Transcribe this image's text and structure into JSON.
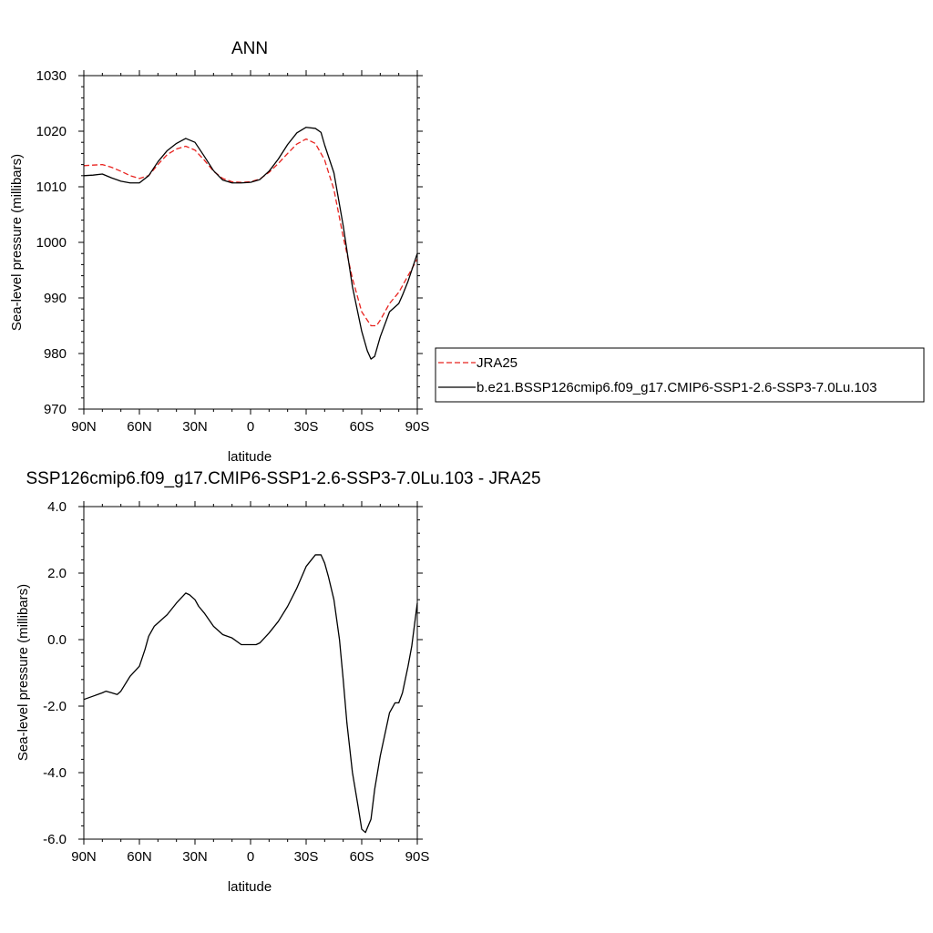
{
  "chart_data": [
    {
      "type": "line",
      "title": "ANN",
      "xlabel": "latitude",
      "ylabel": "Sea-level pressure (millibars)",
      "xlim": [
        -90,
        90
      ],
      "ylim": [
        970,
        1030
      ],
      "x_ticks": [
        -90,
        -60,
        -30,
        0,
        30,
        60,
        90
      ],
      "x_tick_labels": [
        "90N",
        "60N",
        "30N",
        "0",
        "30S",
        "60S",
        "90S"
      ],
      "y_ticks": [
        970,
        980,
        990,
        1000,
        1010,
        1020,
        1030
      ],
      "y_tick_labels": [
        "970",
        "980",
        "990",
        "1000",
        "1010",
        "1020",
        "1030"
      ],
      "grid": false,
      "legend_placement": "right",
      "series": [
        {
          "name": "JRA25",
          "color": "#e8231f",
          "dash": "dashed",
          "x": [
            -90,
            -85,
            -80,
            -75,
            -70,
            -65,
            -60,
            -55,
            -50,
            -45,
            -40,
            -35,
            -30,
            -25,
            -20,
            -15,
            -10,
            -5,
            0,
            5,
            10,
            15,
            20,
            25,
            30,
            35,
            40,
            45,
            50,
            55,
            60,
            65,
            68,
            70,
            75,
            80,
            85,
            90
          ],
          "y": [
            1013.8,
            1013.9,
            1014.0,
            1013.5,
            1012.8,
            1012.0,
            1011.5,
            1012.0,
            1014.0,
            1015.8,
            1016.8,
            1017.3,
            1016.6,
            1014.8,
            1012.8,
            1011.5,
            1010.9,
            1010.8,
            1010.9,
            1011.4,
            1012.6,
            1014.2,
            1016.0,
            1017.7,
            1018.6,
            1017.8,
            1014.8,
            1009.5,
            1001.0,
            993.5,
            987.5,
            985.0,
            985.0,
            986.0,
            989.0,
            991.0,
            994.0,
            997.0
          ]
        },
        {
          "name": "b.e21.BSSP126cmip6.f09_g17.CMIP6-SSP1-2.6-SSP3-7.0Lu.103",
          "color": "#000000",
          "dash": "solid",
          "x": [
            -90,
            -85,
            -80,
            -75,
            -70,
            -65,
            -60,
            -55,
            -50,
            -45,
            -40,
            -35,
            -30,
            -25,
            -20,
            -15,
            -10,
            -5,
            0,
            5,
            10,
            15,
            20,
            25,
            30,
            35,
            38,
            40,
            45,
            50,
            55,
            60,
            63,
            65,
            67,
            70,
            75,
            80,
            82,
            85,
            88,
            90
          ],
          "y": [
            1012.0,
            1012.1,
            1012.3,
            1011.6,
            1011.0,
            1010.7,
            1010.7,
            1012.0,
            1014.5,
            1016.5,
            1017.8,
            1018.7,
            1018.0,
            1015.5,
            1012.9,
            1011.2,
            1010.7,
            1010.7,
            1010.8,
            1011.3,
            1012.8,
            1015.0,
            1017.6,
            1019.7,
            1020.7,
            1020.5,
            1019.8,
            1017.5,
            1012.5,
            1003.0,
            992.0,
            984.0,
            980.5,
            979.0,
            979.5,
            983.0,
            987.5,
            989.0,
            990.5,
            993.0,
            996.0,
            998.0
          ]
        }
      ]
    },
    {
      "type": "line",
      "title": "SSP126cmip6.f09_g17.CMIP6-SSP1-2.6-SSP3-7.0Lu.103 - JRA25",
      "xlabel": "latitude",
      "ylabel": "Sea-level pressure (millibars)",
      "xlim": [
        -90,
        90
      ],
      "ylim": [
        -6,
        4
      ],
      "x_ticks": [
        -90,
        -60,
        -30,
        0,
        30,
        60,
        90
      ],
      "x_tick_labels": [
        "90N",
        "60N",
        "30N",
        "0",
        "30S",
        "60S",
        "90S"
      ],
      "y_ticks": [
        -6,
        -4,
        -2,
        0,
        2,
        4
      ],
      "y_tick_labels": [
        "-6.0",
        "-4.0",
        "-2.0",
        "0.0",
        "2.0",
        "4.0"
      ],
      "grid": false,
      "series": [
        {
          "color": "#000000",
          "dash": "solid",
          "x": [
            -90,
            -85,
            -80,
            -78,
            -75,
            -72,
            -70,
            -65,
            -60,
            -57,
            -55,
            -52,
            -50,
            -45,
            -40,
            -35,
            -33,
            -30,
            -28,
            -25,
            -20,
            -15,
            -10,
            -5,
            0,
            3,
            5,
            10,
            15,
            20,
            25,
            30,
            35,
            38,
            40,
            42,
            45,
            48,
            50,
            52,
            55,
            58,
            60,
            62,
            65,
            67,
            70,
            75,
            78,
            80,
            82,
            85,
            87,
            90
          ],
          "y": [
            -1.8,
            -1.7,
            -1.6,
            -1.55,
            -1.6,
            -1.65,
            -1.55,
            -1.1,
            -0.8,
            -0.3,
            0.1,
            0.4,
            0.5,
            0.75,
            1.1,
            1.4,
            1.35,
            1.2,
            1.0,
            0.8,
            0.4,
            0.15,
            0.05,
            -0.15,
            -0.15,
            -0.15,
            -0.1,
            0.2,
            0.55,
            1.0,
            1.55,
            2.2,
            2.55,
            2.55,
            2.3,
            1.9,
            1.2,
            0.0,
            -1.2,
            -2.5,
            -4.0,
            -5.0,
            -5.7,
            -5.8,
            -5.4,
            -4.5,
            -3.5,
            -2.2,
            -1.9,
            -1.9,
            -1.6,
            -0.8,
            -0.2,
            1.1
          ]
        }
      ]
    }
  ]
}
